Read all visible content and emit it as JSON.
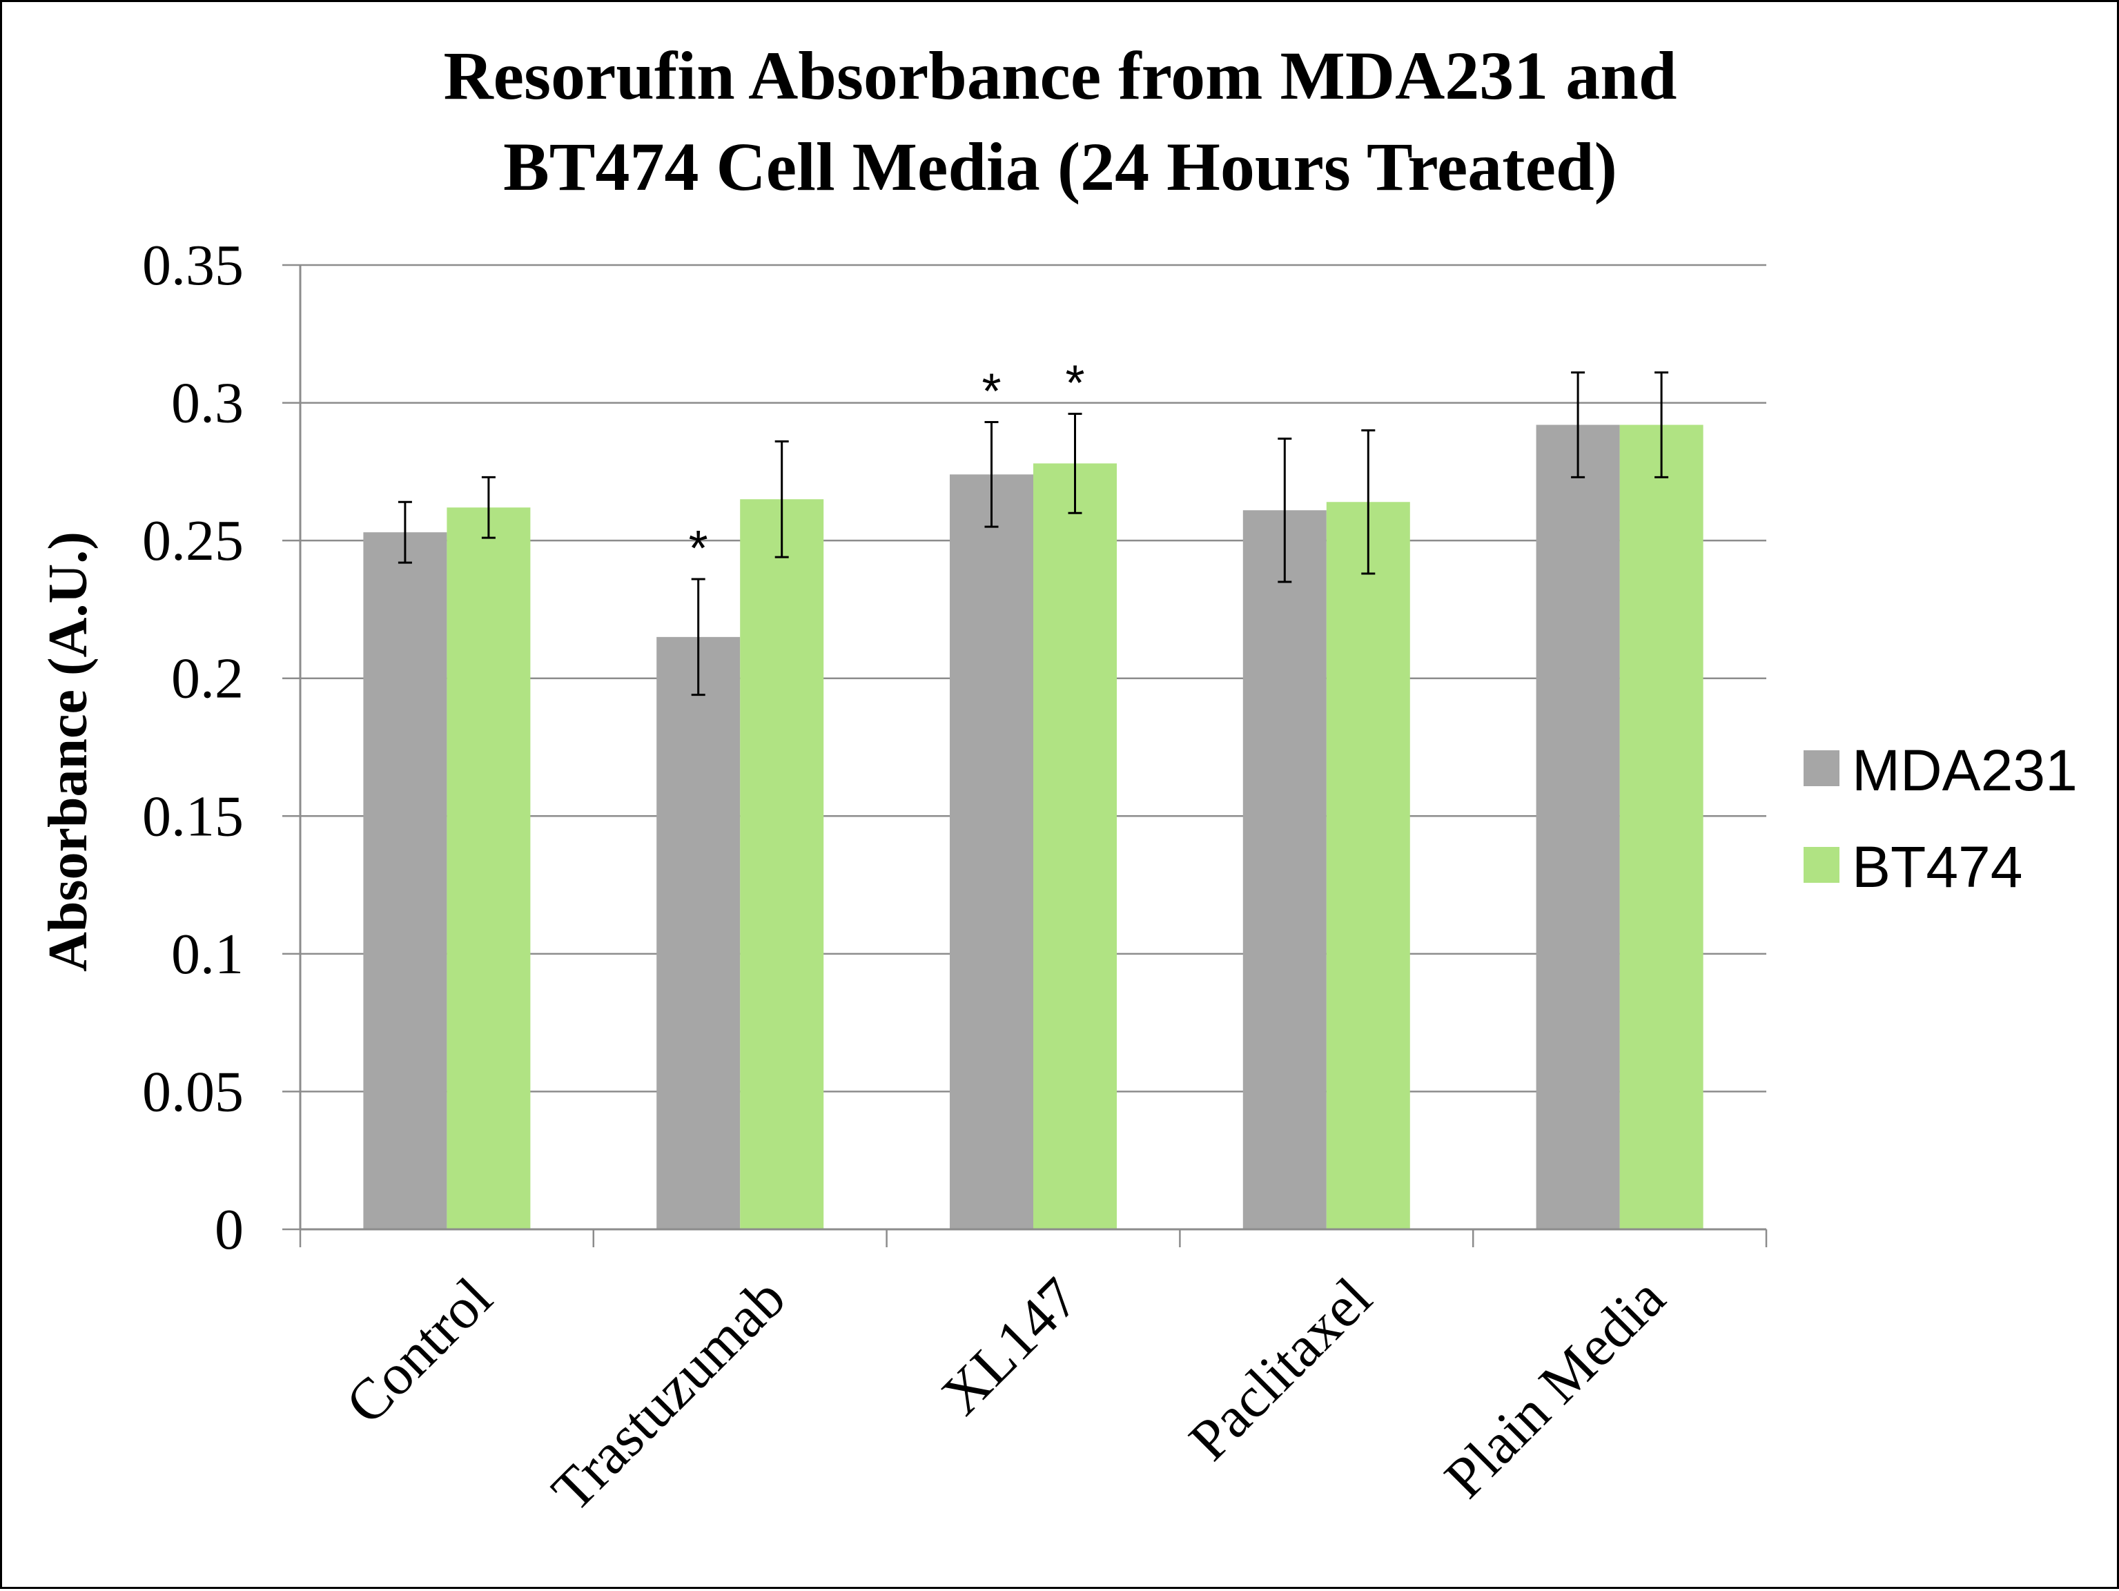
{
  "chart_data": {
    "type": "bar",
    "title_lines": [
      "Resorufin Absorbance from MDA231 and",
      "BT474  Cell Media (24 Hours Treated)"
    ],
    "xlabel": "",
    "ylabel": "Absorbance (A.U.)",
    "categories": [
      "Control",
      "Trastuzumab",
      "XL147",
      "Paclitaxel",
      "Plain Media"
    ],
    "ylim": [
      0,
      0.35
    ],
    "yticks": [
      "0",
      "0.05",
      "0.1",
      "0.15",
      "0.2",
      "0.25",
      "0.3",
      "0.35"
    ],
    "grid": true,
    "legend_position": "right",
    "series": [
      {
        "name": "MDA231",
        "color": "#a6a6a6",
        "values": [
          0.253,
          0.215,
          0.274,
          0.261,
          0.292
        ],
        "errors": [
          0.011,
          0.021,
          0.019,
          0.026,
          0.019
        ],
        "significance": [
          "",
          "*",
          "*",
          "",
          ""
        ]
      },
      {
        "name": "BT474",
        "color": "#b0e383",
        "values": [
          0.262,
          0.265,
          0.278,
          0.264,
          0.292
        ],
        "errors": [
          0.011,
          0.021,
          0.018,
          0.026,
          0.019
        ],
        "significance": [
          "",
          "",
          "*",
          "",
          ""
        ]
      }
    ]
  }
}
